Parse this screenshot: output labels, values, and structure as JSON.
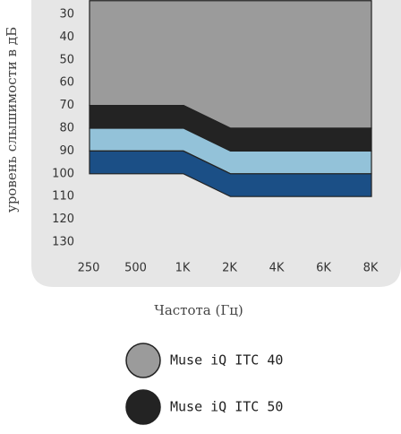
{
  "chart_data": {
    "type": "area",
    "y_axis_label": "уровень слышимости в дБ",
    "x_axis_label": "Частота (Гц)",
    "categories": [
      "250",
      "500",
      "1K",
      "2K",
      "4K",
      "6K",
      "8K"
    ],
    "ylim": [
      24,
      130
    ],
    "yticks": [
      30,
      40,
      50,
      60,
      70,
      80,
      90,
      100,
      110,
      120,
      130
    ],
    "y_inverted": true,
    "series": [
      {
        "name": "Muse iQ ITC 40",
        "color": "#9b9b9b",
        "values": [
          70,
          70,
          70,
          80,
          80,
          80,
          80
        ]
      },
      {
        "name": "Muse iQ ITC 50",
        "color": "#232323",
        "values": [
          80,
          80,
          80,
          90,
          90,
          90,
          90
        ]
      },
      {
        "color": "#93c2d9",
        "values": [
          90,
          90,
          90,
          100,
          100,
          100,
          100
        ]
      },
      {
        "color": "#1b4f86",
        "values": [
          100,
          100,
          100,
          110,
          110,
          110,
          110
        ]
      }
    ]
  }
}
